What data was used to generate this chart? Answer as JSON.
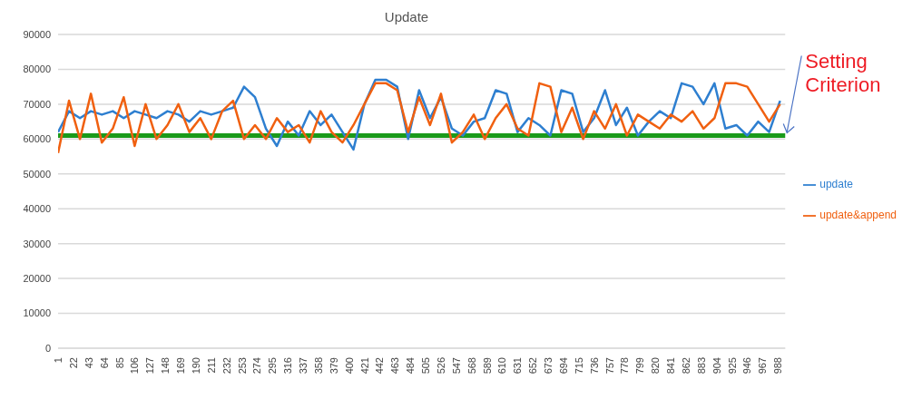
{
  "chart_data": {
    "type": "line",
    "title": "Update",
    "x": [
      1,
      16,
      31,
      46,
      61,
      76,
      91,
      106,
      121,
      136,
      151,
      166,
      181,
      196,
      211,
      226,
      241,
      256,
      271,
      286,
      301,
      316,
      331,
      346,
      361,
      376,
      391,
      406,
      421,
      436,
      451,
      466,
      481,
      496,
      511,
      526,
      541,
      556,
      571,
      586,
      601,
      616,
      631,
      646,
      661,
      676,
      691,
      706,
      721,
      736,
      751,
      766,
      781,
      796,
      811,
      826,
      841,
      856,
      871,
      886,
      901,
      916,
      931,
      946,
      961,
      976,
      991
    ],
    "series": [
      {
        "name": "update",
        "color": "#2e7fd0",
        "values": [
          62000,
          68000,
          66000,
          68000,
          67000,
          68000,
          66000,
          68000,
          67000,
          66000,
          68000,
          67000,
          65000,
          68000,
          67000,
          68000,
          69000,
          75000,
          72000,
          63000,
          58000,
          65000,
          61000,
          68000,
          64000,
          67000,
          62000,
          57000,
          70000,
          77000,
          77000,
          75000,
          60000,
          74000,
          66000,
          72000,
          63000,
          61000,
          65000,
          66000,
          74000,
          73000,
          62000,
          66000,
          64000,
          61000,
          74000,
          73000,
          62000,
          66000,
          74000,
          64000,
          69000,
          61000,
          65000,
          68000,
          66000,
          76000,
          75000,
          70000,
          76000,
          63000,
          64000,
          61000,
          65000,
          62000,
          71000
        ]
      },
      {
        "name": "update&append",
        "color": "#f06010",
        "values": [
          56000,
          71000,
          60000,
          73000,
          59000,
          63000,
          72000,
          58000,
          70000,
          60000,
          64000,
          70000,
          62000,
          66000,
          60000,
          68000,
          71000,
          60000,
          64000,
          60000,
          66000,
          62000,
          64000,
          59000,
          68000,
          62000,
          59000,
          64000,
          70000,
          76000,
          76000,
          74000,
          62000,
          72000,
          64000,
          73000,
          59000,
          62000,
          67000,
          60000,
          66000,
          70000,
          63000,
          61000,
          76000,
          75000,
          62000,
          69000,
          60000,
          68000,
          63000,
          70000,
          61000,
          67000,
          65000,
          63000,
          67000,
          65000,
          68000,
          63000,
          66000,
          76000,
          76000,
          75000,
          70000,
          65000,
          70000
        ]
      }
    ],
    "xlim": [
      1,
      998
    ],
    "xticks": [
      1,
      22,
      43,
      64,
      85,
      106,
      127,
      148,
      169,
      190,
      211,
      232,
      253,
      274,
      295,
      316,
      337,
      358,
      379,
      400,
      421,
      442,
      463,
      484,
      505,
      526,
      547,
      568,
      589,
      610,
      631,
      652,
      673,
      694,
      715,
      736,
      757,
      778,
      799,
      820,
      841,
      862,
      883,
      904,
      925,
      946,
      967,
      988
    ],
    "ylim": [
      0,
      90000
    ],
    "yticks": [
      0,
      10000,
      20000,
      30000,
      40000,
      50000,
      60000,
      70000,
      80000,
      90000
    ],
    "grid": "y",
    "legend": "right",
    "ref_lines": [
      {
        "axis": "y",
        "value": 61000,
        "label": "Setting Criterion",
        "color": "#1a9a1a"
      }
    ]
  }
}
